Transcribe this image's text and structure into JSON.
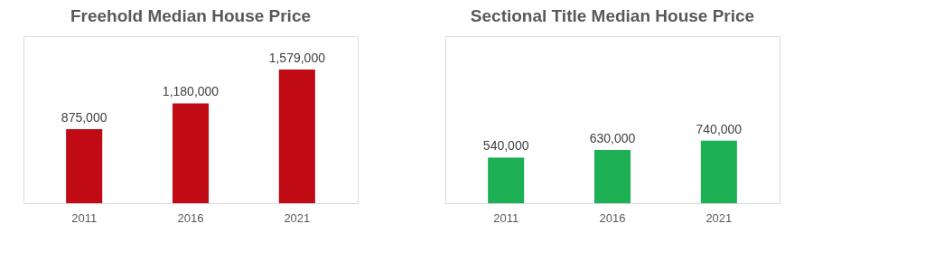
{
  "chart_data": [
    {
      "type": "bar",
      "title": "Freehold Median House Price",
      "categories": [
        "2011",
        "2016",
        "2021"
      ],
      "values": [
        875000,
        1180000,
        1579000
      ],
      "value_labels": [
        "875,000",
        "1,180,000",
        "1,579,000"
      ],
      "color": "#c00a14",
      "tick_labels": "x"
    },
    {
      "type": "bar",
      "title": "Sectional Title Median House Price",
      "categories": [
        "2011",
        "2016",
        "2021"
      ],
      "values": [
        540000,
        630000,
        740000
      ],
      "value_labels": [
        "540,000",
        "630,000",
        "740,000"
      ],
      "color": "#1db055",
      "tick_labels": "x"
    }
  ]
}
